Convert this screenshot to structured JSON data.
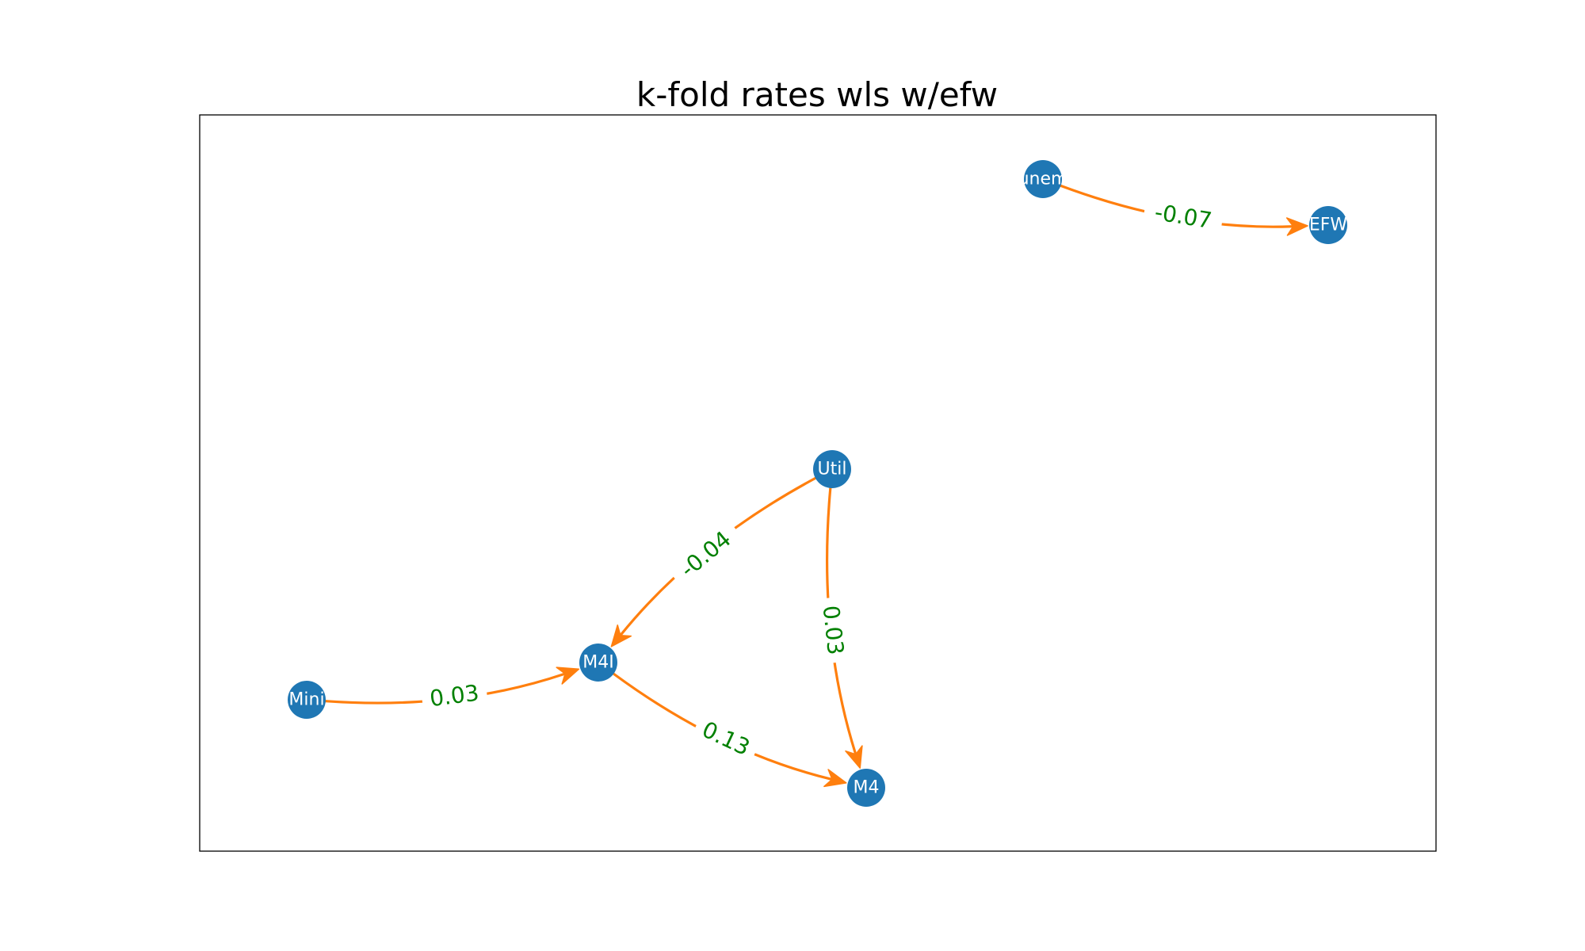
{
  "title": "k-fold rates wls w/efw",
  "colors": {
    "node": "#1f77b4",
    "edge": "#ff7f0e",
    "edge_label": "#008000",
    "node_text": "#ffffff",
    "frame": "#000000"
  },
  "nodes": [
    {
      "id": "unem",
      "label": "unem"
    },
    {
      "id": "EFW",
      "label": "EFW"
    },
    {
      "id": "Util",
      "label": "Util"
    },
    {
      "id": "M4I",
      "label": "M4I"
    },
    {
      "id": "Mini",
      "label": "Mini"
    },
    {
      "id": "M4",
      "label": "M4"
    }
  ],
  "edges": [
    {
      "from": "unem",
      "to": "EFW",
      "label": "-0.07"
    },
    {
      "from": "Util",
      "to": "M4I",
      "label": "-0.04"
    },
    {
      "from": "Util",
      "to": "M4",
      "label": "0.03"
    },
    {
      "from": "Mini",
      "to": "M4I",
      "label": "0.03"
    },
    {
      "from": "M4I",
      "to": "M4",
      "label": "0.13"
    }
  ]
}
